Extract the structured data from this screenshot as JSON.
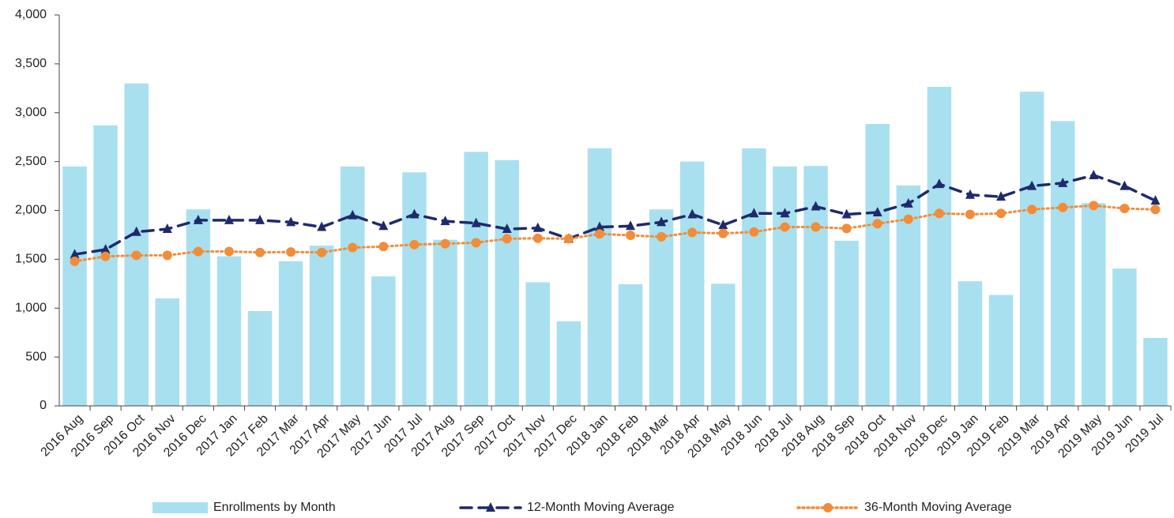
{
  "chart_data": {
    "type": "bar",
    "categories": [
      "2016 Aug",
      "2016 Sep",
      "2016 Oct",
      "2016 Nov",
      "2016 Dec",
      "2017 Jan",
      "2017 Feb",
      "2017 Mar",
      "2017 Apr",
      "2017 May",
      "2017 Jun",
      "2017 Jul",
      "2017 Aug",
      "2017 Sep",
      "2017 Oct",
      "2017 Nov",
      "2017 Dec",
      "2018 Jan",
      "2018 Feb",
      "2018 Mar",
      "2018 Apr",
      "2018 May",
      "2018 Jun",
      "2018 Jul",
      "2018 Aug",
      "2018 Sep",
      "2018 Oct",
      "2018 Nov",
      "2018 Dec",
      "2019 Jan",
      "2019 Feb",
      "2019 Mar",
      "2019 Apr",
      "2019 May",
      "2019 Jun",
      "2019 Jul"
    ],
    "series": [
      {
        "name": "Enrollments by Month",
        "type": "bar",
        "color": "#a8e0ef",
        "values": [
          2450,
          2870,
          3300,
          1100,
          2010,
          1530,
          970,
          1480,
          1640,
          2450,
          1325,
          2390,
          1700,
          2600,
          2515,
          1265,
          865,
          2635,
          1245,
          2010,
          2500,
          1250,
          2635,
          2450,
          2455,
          1690,
          2885,
          2255,
          3265,
          1275,
          1135,
          3215,
          2915,
          2075,
          1405,
          695
        ]
      },
      {
        "name": "12-Month Moving Average",
        "type": "line",
        "color": "#1f2a6b",
        "dash": "dashed",
        "marker": "triangle",
        "values": [
          1550,
          1600,
          1780,
          1810,
          1900,
          1900,
          1900,
          1880,
          1830,
          1950,
          1840,
          1960,
          1890,
          1870,
          1810,
          1820,
          1710,
          1830,
          1840,
          1880,
          1960,
          1850,
          1970,
          1970,
          2040,
          1960,
          1980,
          2070,
          2270,
          2160,
          2140,
          2250,
          2280,
          2360,
          2250,
          2100
        ]
      },
      {
        "name": "36-Month Moving Average",
        "type": "line",
        "color": "#f28c38",
        "dash": "dotted",
        "marker": "circle",
        "values": [
          1480,
          1530,
          1540,
          1540,
          1580,
          1580,
          1570,
          1575,
          1570,
          1620,
          1630,
          1650,
          1660,
          1670,
          1710,
          1715,
          1710,
          1760,
          1745,
          1730,
          1775,
          1765,
          1780,
          1830,
          1830,
          1815,
          1865,
          1910,
          1970,
          1960,
          1970,
          2010,
          2030,
          2050,
          2020,
          2010
        ]
      }
    ],
    "ylim": [
      0,
      4000
    ],
    "yticks": [
      0,
      500,
      {
        "value": 1000,
        "label": "1,000"
      },
      {
        "value": 1500,
        "label": "1,500"
      },
      {
        "value": 2000,
        "label": "2,000"
      },
      {
        "value": 2500,
        "label": "2,500"
      },
      {
        "value": 3000,
        "label": "3,000"
      },
      {
        "value": 3500,
        "label": "3,500"
      },
      {
        "value": 4000,
        "label": "4,000"
      }
    ],
    "grid": false,
    "legend": "bottom"
  }
}
